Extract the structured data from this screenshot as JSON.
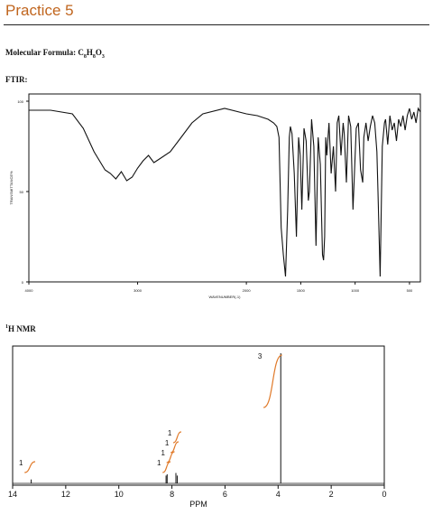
{
  "page": {
    "title": "Practice 5",
    "formula_prefix": "Molecular Formula: ",
    "formula_c": "C",
    "formula_c_n": "8",
    "formula_h": "H",
    "formula_h_n": "8",
    "formula_o": "O",
    "formula_o_n": "3",
    "ftir_label": "FTIR:",
    "nmr_sup": "1",
    "nmr_label": "H NMR"
  },
  "colors": {
    "accent": "#c0651e",
    "integral": "#e07a2a",
    "ink": "#111111"
  },
  "chart_data": [
    {
      "type": "line",
      "name": "ftir",
      "xlabel": "WAVENUMBER(-1)",
      "ylabel": "TRANSMITTANCE%",
      "xlim": [
        4000,
        400
      ],
      "ylim": [
        0,
        100
      ],
      "xticks": [
        4000,
        3000,
        2000,
        1500,
        1000,
        500
      ],
      "yticks": [
        0,
        50,
        100
      ],
      "x": [
        4000,
        3800,
        3600,
        3500,
        3400,
        3300,
        3250,
        3200,
        3150,
        3100,
        3050,
        3000,
        2950,
        2900,
        2850,
        2800,
        2700,
        2600,
        2500,
        2400,
        2200,
        2000,
        1900,
        1800,
        1750,
        1720,
        1700,
        1680,
        1660,
        1640,
        1620,
        1605,
        1595,
        1580,
        1560,
        1540,
        1520,
        1505,
        1490,
        1470,
        1450,
        1430,
        1420,
        1400,
        1380,
        1360,
        1340,
        1320,
        1300,
        1290,
        1280,
        1270,
        1260,
        1240,
        1220,
        1200,
        1180,
        1165,
        1150,
        1130,
        1110,
        1100,
        1080,
        1060,
        1040,
        1020,
        1000,
        990,
        970,
        950,
        930,
        920,
        900,
        880,
        860,
        840,
        820,
        800,
        790,
        770,
        750,
        730,
        720,
        700,
        680,
        660,
        640,
        620,
        600,
        580,
        560,
        540,
        520,
        500,
        480,
        460,
        440,
        420,
        400
      ],
      "y": [
        95,
        95,
        93,
        85,
        72,
        62,
        60,
        57,
        61,
        56,
        58,
        63,
        67,
        70,
        66,
        68,
        72,
        80,
        88,
        93,
        96,
        93,
        92,
        90,
        88,
        86,
        80,
        30,
        15,
        3,
        40,
        80,
        86,
        82,
        60,
        25,
        80,
        70,
        40,
        85,
        78,
        45,
        50,
        90,
        75,
        20,
        80,
        65,
        15,
        12,
        25,
        80,
        70,
        88,
        60,
        75,
        50,
        88,
        92,
        70,
        88,
        82,
        55,
        92,
        86,
        40,
        70,
        85,
        88,
        62,
        55,
        80,
        88,
        78,
        86,
        92,
        88,
        72,
        50,
        3,
        75,
        88,
        90,
        76,
        92,
        84,
        88,
        78,
        90,
        86,
        92,
        84,
        92,
        96,
        90,
        94,
        88,
        96,
        94
      ]
    },
    {
      "type": "line",
      "name": "nmr",
      "xlabel": "PPM",
      "xlim": [
        14,
        0
      ],
      "xticks": [
        14,
        12,
        10,
        8,
        6,
        4,
        2,
        0
      ],
      "peaks": [
        {
          "ppm": 13.3,
          "height": 0.03
        },
        {
          "ppm": 8.22,
          "height": 0.06
        },
        {
          "ppm": 8.18,
          "height": 0.07
        },
        {
          "ppm": 7.85,
          "height": 0.08
        },
        {
          "ppm": 7.8,
          "height": 0.06
        },
        {
          "ppm": 3.9,
          "height": 1.0
        }
      ],
      "integrals": [
        {
          "label": "1",
          "from": 13.55,
          "to": 13.15
        },
        {
          "label": "1",
          "from": 8.35,
          "to": 8.05
        },
        {
          "label": "1",
          "from": 8.2,
          "to": 7.9
        },
        {
          "label": "1",
          "from": 8.05,
          "to": 7.75
        },
        {
          "label": "1",
          "from": 7.95,
          "to": 7.65
        },
        {
          "label": "3",
          "from": 4.55,
          "to": 3.85
        }
      ]
    }
  ]
}
